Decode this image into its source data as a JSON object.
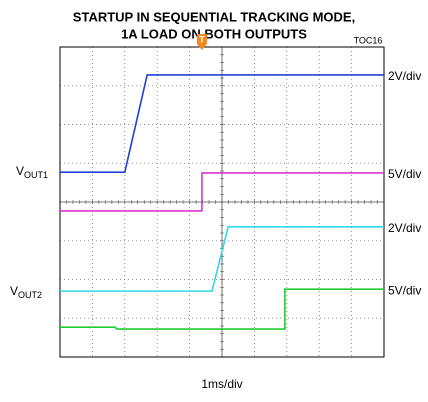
{
  "chart_data": {
    "type": "line",
    "title": [
      "STARTUP IN SEQUENTIAL TRACKING MODE,",
      "1A LOAD ON BOTH OUTPUTS"
    ],
    "figure_id": "TOC16",
    "x_label": "1ms/div",
    "trigger": "T",
    "trace_labels": [
      {
        "main": "V",
        "sub": "OUT1"
      },
      {
        "main": "V",
        "sub": "OUT2"
      }
    ],
    "xlim": [
      0,
      10
    ],
    "ylim": [
      0,
      8
    ],
    "xticks": [
      0,
      1,
      2,
      3,
      4,
      5,
      6,
      7,
      8,
      9,
      10
    ],
    "yticks": [
      0,
      1,
      2,
      3,
      4,
      5,
      6,
      7,
      8
    ],
    "grid": true,
    "series": [
      {
        "scale": "2V/div",
        "color": "#2040d8",
        "x": [
          0,
          2.0,
          2.69,
          10
        ],
        "values": [
          4.77,
          4.77,
          7.28,
          7.28
        ]
      },
      {
        "scale": "5V/div",
        "color": "#d838d0",
        "x": [
          0,
          4.38,
          4.38,
          10
        ],
        "values": [
          3.77,
          3.77,
          4.75,
          4.75
        ]
      },
      {
        "scale": "2V/div",
        "color": "#30d8ea",
        "x": [
          0,
          4.69,
          5.19,
          10
        ],
        "values": [
          1.7,
          1.7,
          3.36,
          3.36
        ]
      },
      {
        "scale": "5V/div",
        "color": "#20cc30",
        "x": [
          0,
          1.7,
          1.75,
          6.94,
          6.94,
          10
        ],
        "values": [
          0.77,
          0.77,
          0.72,
          0.72,
          1.75,
          1.75
        ]
      }
    ]
  }
}
